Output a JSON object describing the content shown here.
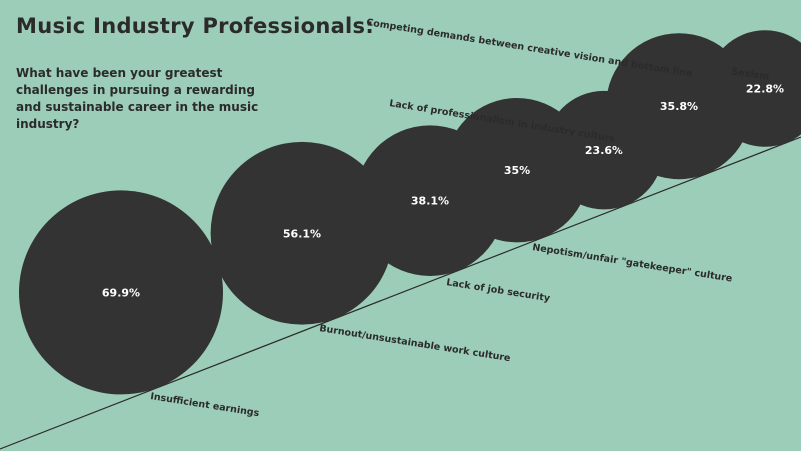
{
  "chart_data": {
    "type": "bubble",
    "title": "Music Industry Professionals:",
    "subtitle": "What have been your greatest challenges in pursuing a rewarding and sustainable career in the music industry?",
    "unit": "%",
    "series": [
      {
        "category": "Insufficient earnings",
        "value": 69.9,
        "label": "69.9%"
      },
      {
        "category": "Burnout/unsustainable work culture",
        "value": 56.1,
        "label": "56.1%"
      },
      {
        "category": "Lack of job security",
        "value": 38.1,
        "label": "38.1%"
      },
      {
        "category": "Nepotism/unfair \"gatekeeper\" culture",
        "value": 35,
        "label": "35%"
      },
      {
        "category": "Lack of professionalism in industry culture",
        "value": 23.6,
        "label": "23.6%"
      },
      {
        "category": "Competing demands between creative vision and bottom line",
        "value": 35.8,
        "label": "35.8%"
      },
      {
        "category": "Sexism",
        "value": 22.8,
        "label": "22.8%"
      }
    ]
  },
  "colors": {
    "background": "#9ccdb8",
    "bubble": "#333333",
    "bubble_text": "#ffffff",
    "text": "#2b2b2b",
    "line": "#2b2b2b"
  }
}
